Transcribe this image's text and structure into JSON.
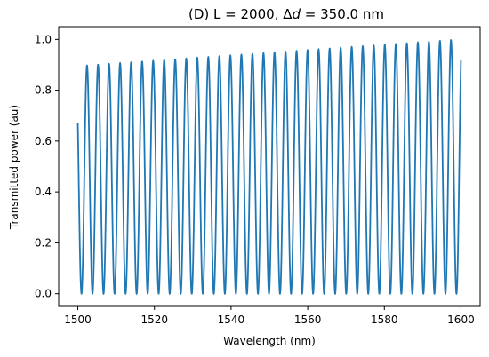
{
  "chart_data": {
    "type": "line",
    "title": "(D) L = 2000, Δd = 350.0 nm",
    "title_parts": {
      "prefix": "(D) L = 2000, Δ",
      "italic": "d",
      "suffix": " = 350.0 nm"
    },
    "xlabel": "Wavelength (nm)",
    "ylabel": "Transmitted power (au)",
    "xlim": [
      1495,
      1605
    ],
    "ylim": [
      -0.05,
      1.05
    ],
    "xticks": [
      1500,
      1520,
      1540,
      1560,
      1580,
      1600
    ],
    "yticks": [
      0.0,
      0.2,
      0.4,
      0.6,
      0.8,
      1.0
    ],
    "grid": false,
    "series": [
      {
        "color": "#1f77b4",
        "x_start": 1500,
        "x_end": 1600,
        "cycles": 34.74,
        "start_value": 0.67,
        "start_envelope_max": 0.895,
        "end_envelope_max": 1.0,
        "end_value": 1.0
      }
    ]
  }
}
